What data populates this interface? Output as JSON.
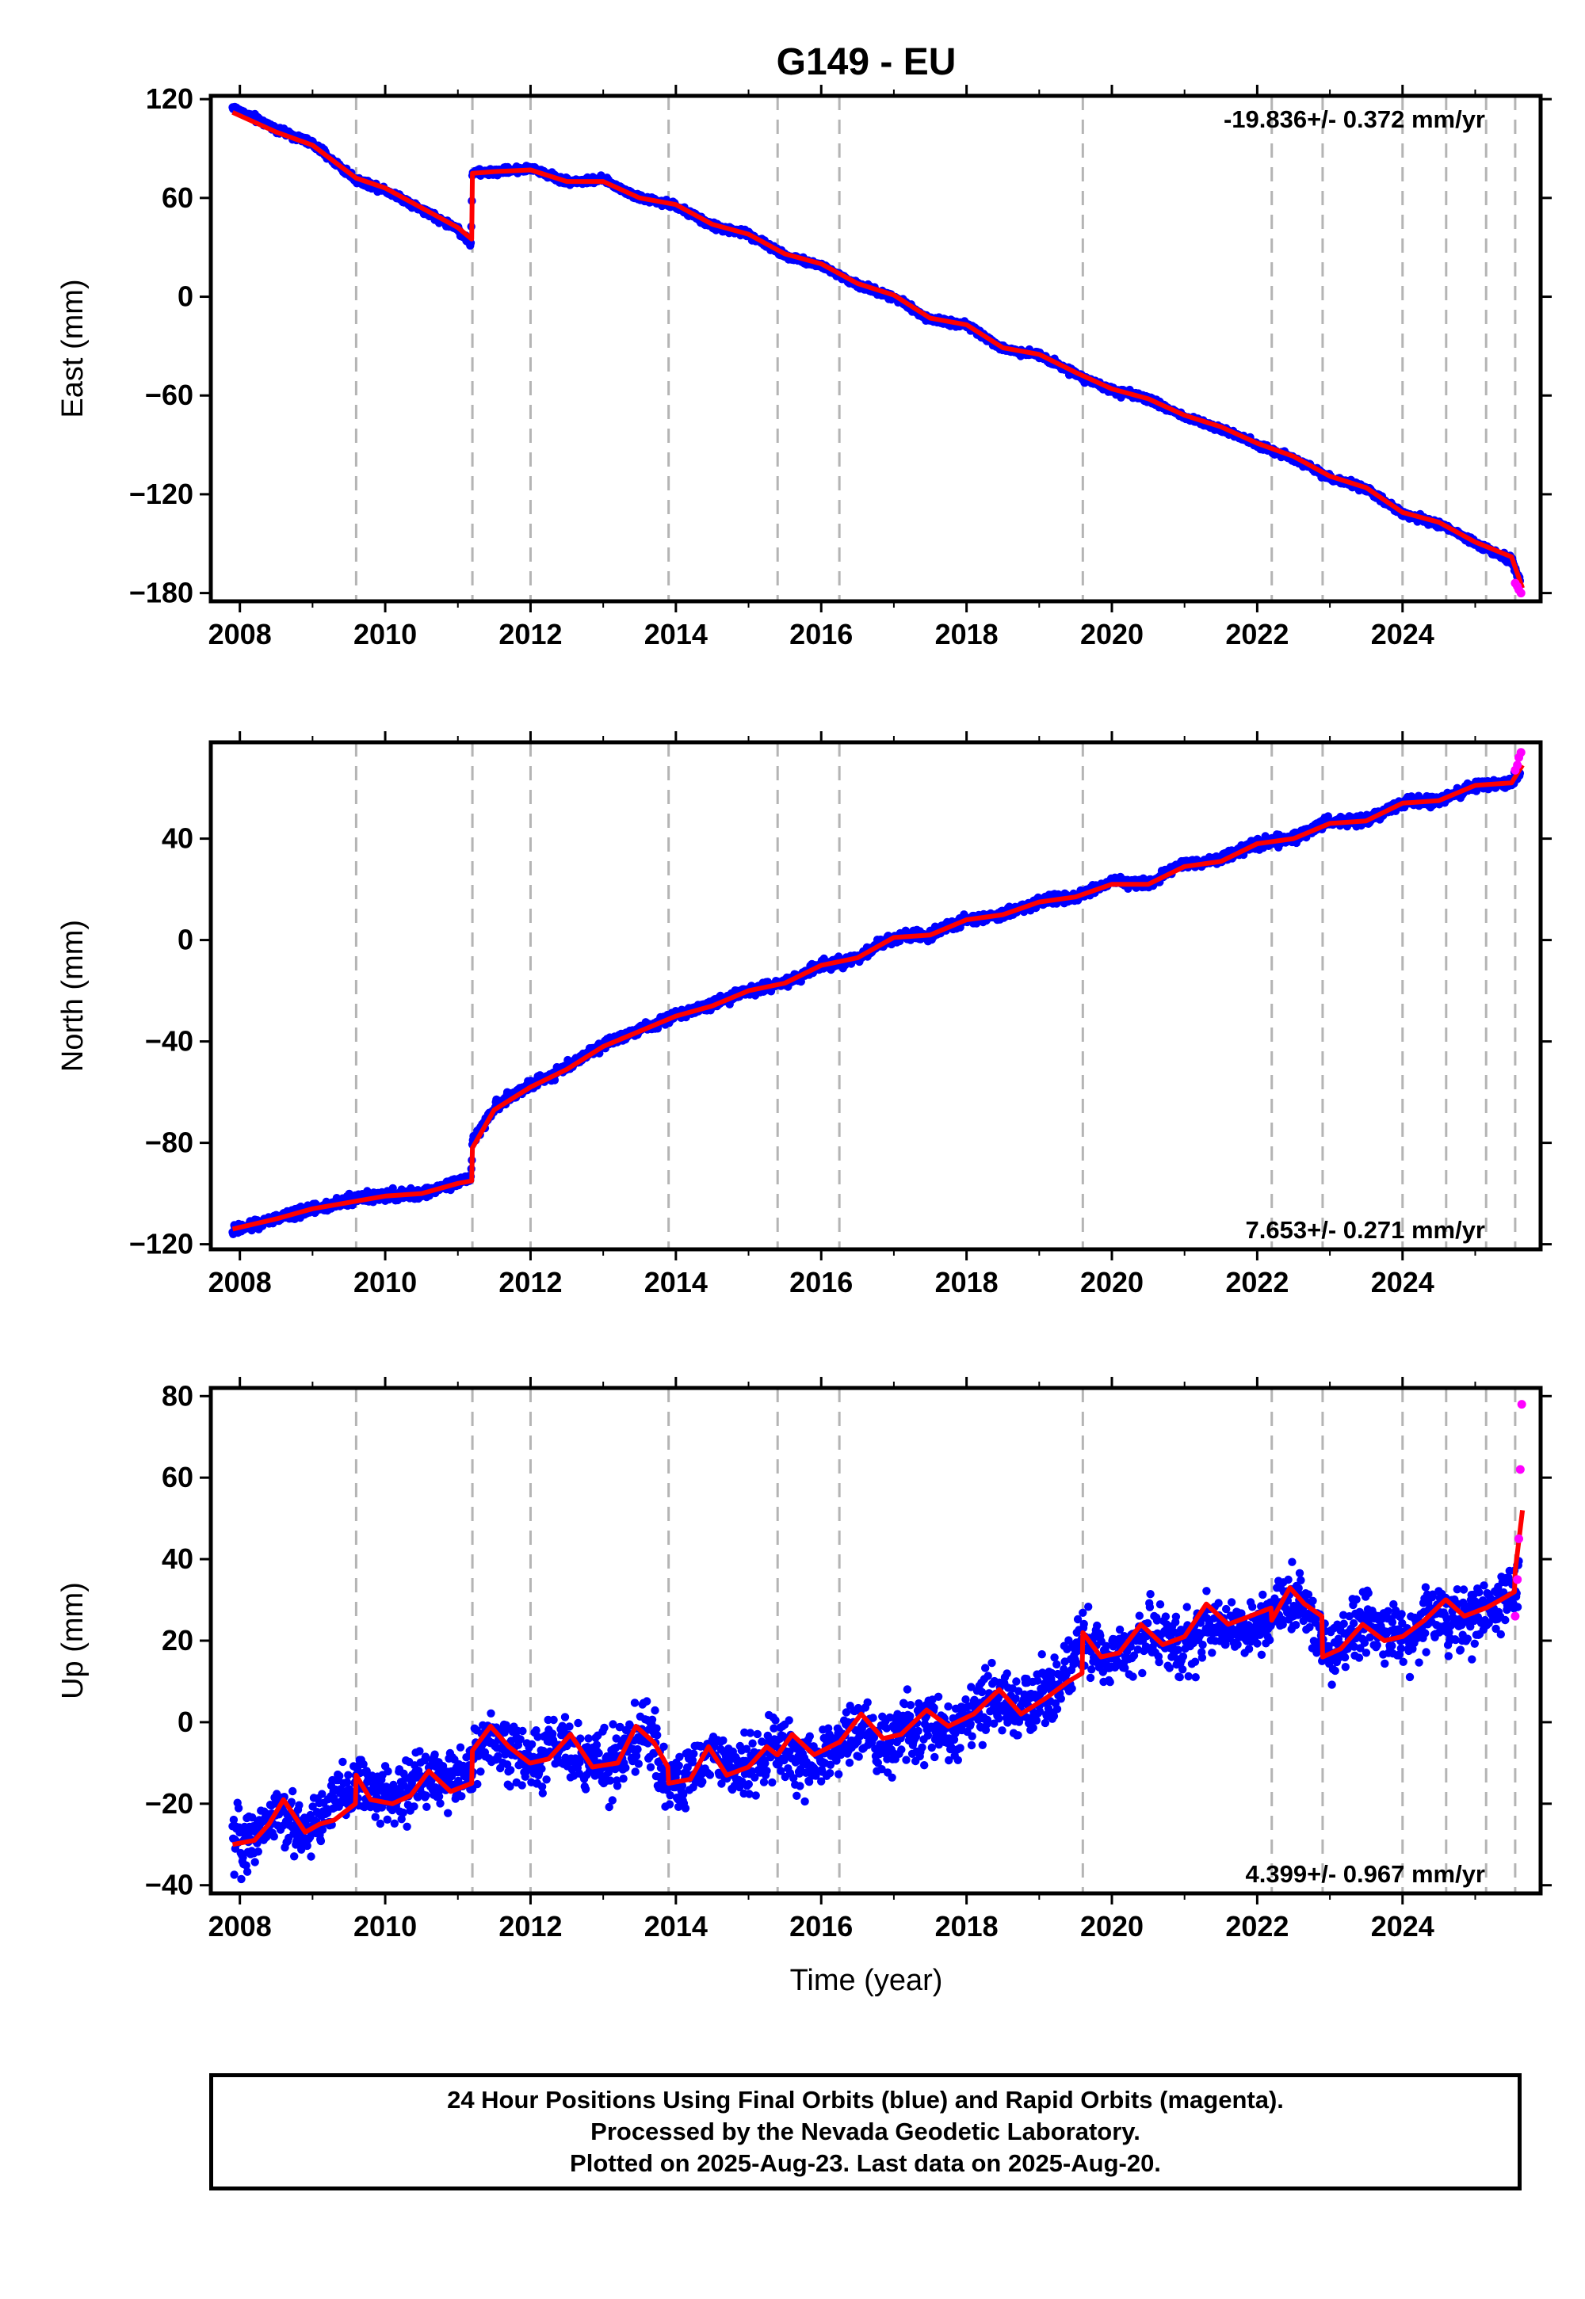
{
  "title": "G149 - EU",
  "colors": {
    "final_orbits": "#0000ff",
    "rapid_orbits": "#ff00ff",
    "model": "#ff0000",
    "event_lines": "#b4b4b4"
  },
  "xlabel": "Time (year)",
  "chart_data": [
    {
      "type": "scatter",
      "component": "East",
      "ylabel": "East (mm)",
      "xlim": [
        2007.6,
        2025.9
      ],
      "ylim": [
        -185,
        122
      ],
      "x_ticks": [
        2008,
        2010,
        2012,
        2014,
        2016,
        2018,
        2020,
        2022,
        2024
      ],
      "y_ticks": [
        120,
        60,
        0,
        -60,
        -120,
        -180
      ],
      "y_tick_labels": [
        "120",
        "60",
        "0",
        "−60",
        "−120",
        "−180"
      ],
      "velocity_label": "-19.836+/- 0.372 mm/yr",
      "velocity_position": "top-right",
      "event_lines": [
        2009.6,
        2011.2,
        2012.0,
        2013.9,
        2015.4,
        2016.25,
        2019.6,
        2022.2,
        2022.9,
        2024.0,
        2024.6,
        2025.15,
        2025.55
      ],
      "series": [
        {
          "name": "Final Orbits",
          "x": [
            2007.9,
            2008.5,
            2009.0,
            2009.6,
            2010.0,
            2010.5,
            2011.0,
            2011.18,
            2011.2,
            2011.5,
            2012.0,
            2012.5,
            2013.0,
            2013.5,
            2014.0,
            2014.5,
            2015.0,
            2015.5,
            2016.0,
            2016.5,
            2017.0,
            2017.5,
            2018.0,
            2018.5,
            2019.0,
            2019.5,
            2020.0,
            2020.5,
            2021.0,
            2021.5,
            2022.0,
            2022.5,
            2023.0,
            2023.5,
            2024.0,
            2024.5,
            2025.0,
            2025.5,
            2025.62
          ],
          "y": [
            115,
            102,
            93,
            71,
            65,
            53,
            41,
            32,
            75,
            76,
            78,
            70,
            71,
            60,
            55,
            43,
            38,
            25,
            19,
            7,
            0,
            -14,
            -17,
            -32,
            -35,
            -47,
            -57,
            -62,
            -73,
            -80,
            -90,
            -98,
            -110,
            -117,
            -132,
            -138,
            -150,
            -160,
            -173
          ]
        },
        {
          "name": "Rapid Orbits",
          "x": [
            2025.55,
            2025.58,
            2025.6,
            2025.63
          ],
          "y": [
            -174,
            -176,
            -178,
            -180
          ]
        }
      ],
      "model": {
        "x": [
          2007.9,
          2008.5,
          2009.0,
          2009.6,
          2010.0,
          2010.5,
          2011.0,
          2011.19,
          2011.2,
          2011.5,
          2012.0,
          2012.5,
          2013.0,
          2013.5,
          2014.0,
          2014.5,
          2015.0,
          2015.5,
          2016.0,
          2016.5,
          2017.0,
          2017.5,
          2018.0,
          2018.5,
          2019.0,
          2019.5,
          2020.0,
          2020.5,
          2021.0,
          2021.5,
          2022.0,
          2022.5,
          2023.0,
          2023.5,
          2024.0,
          2024.5,
          2025.0,
          2025.5,
          2025.65
        ],
        "y": [
          112,
          100,
          92,
          72,
          66,
          54,
          42,
          35,
          75,
          76,
          77,
          70,
          70,
          60,
          56,
          44,
          38,
          26,
          20,
          8,
          1,
          -13,
          -17,
          -31,
          -35,
          -46,
          -56,
          -62,
          -72,
          -79,
          -89,
          -97,
          -109,
          -116,
          -131,
          -137,
          -149,
          -158,
          -177
        ]
      }
    },
    {
      "type": "scatter",
      "component": "North",
      "ylabel": "North (mm)",
      "xlim": [
        2007.6,
        2025.9
      ],
      "ylim": [
        -122,
        78
      ],
      "x_ticks": [
        2008,
        2010,
        2012,
        2014,
        2016,
        2018,
        2020,
        2022,
        2024
      ],
      "y_ticks": [
        40,
        0,
        -40,
        -80,
        -120
      ],
      "y_tick_labels": [
        "40",
        "0",
        "−40",
        "−80",
        "−120"
      ],
      "velocity_label": "7.653+/- 0.271 mm/yr",
      "velocity_position": "bottom-right",
      "event_lines": [
        2009.6,
        2011.2,
        2012.0,
        2013.9,
        2015.4,
        2016.25,
        2019.6,
        2022.2,
        2022.9,
        2024.0,
        2024.6,
        2025.15,
        2025.55
      ],
      "series": [
        {
          "name": "Final Orbits",
          "x": [
            2007.9,
            2008.5,
            2009.0,
            2009.6,
            2010.0,
            2010.5,
            2011.0,
            2011.18,
            2011.2,
            2011.5,
            2012.0,
            2012.5,
            2013.0,
            2013.5,
            2014.0,
            2014.5,
            2015.0,
            2015.5,
            2016.0,
            2016.5,
            2017.0,
            2017.5,
            2018.0,
            2018.5,
            2019.0,
            2019.5,
            2020.0,
            2020.5,
            2021.0,
            2021.5,
            2022.0,
            2022.5,
            2023.0,
            2023.5,
            2024.0,
            2024.5,
            2025.0,
            2025.5,
            2025.62
          ],
          "y": [
            -115,
            -110,
            -106,
            -102,
            -101,
            -100,
            -95,
            -94,
            -80,
            -66,
            -57,
            -50,
            -41,
            -35,
            -30,
            -25,
            -20,
            -17,
            -10,
            -7,
            1,
            2,
            8,
            10,
            15,
            17,
            23,
            22,
            30,
            32,
            38,
            40,
            47,
            47,
            54,
            55,
            61,
            62,
            66
          ]
        },
        {
          "name": "Rapid Orbits",
          "x": [
            2025.55,
            2025.58,
            2025.6,
            2025.63
          ],
          "y": [
            67,
            69,
            72,
            74
          ]
        }
      ],
      "model": {
        "x": [
          2007.9,
          2008.5,
          2009.0,
          2009.6,
          2010.0,
          2010.5,
          2011.0,
          2011.19,
          2011.2,
          2011.5,
          2012.0,
          2012.5,
          2013.0,
          2013.5,
          2014.0,
          2014.5,
          2015.0,
          2015.5,
          2016.0,
          2016.5,
          2017.0,
          2017.5,
          2018.0,
          2018.5,
          2019.0,
          2019.5,
          2020.0,
          2020.5,
          2021.0,
          2021.5,
          2022.0,
          2022.5,
          2023.0,
          2023.5,
          2024.0,
          2024.5,
          2025.0,
          2025.5,
          2025.65
        ],
        "y": [
          -114,
          -110,
          -106,
          -103,
          -101,
          -100,
          -96,
          -95,
          -82,
          -67,
          -58,
          -51,
          -42,
          -36,
          -30,
          -26,
          -20,
          -17,
          -10,
          -7,
          1,
          2,
          8,
          10,
          15,
          17,
          22,
          22,
          29,
          31,
          38,
          40,
          46,
          47,
          54,
          55,
          61,
          62,
          69
        ]
      }
    },
    {
      "type": "scatter",
      "component": "Up",
      "ylabel": "Up (mm)",
      "xlim": [
        2007.6,
        2025.9
      ],
      "ylim": [
        -42,
        82
      ],
      "x_ticks": [
        2008,
        2010,
        2012,
        2014,
        2016,
        2018,
        2020,
        2022,
        2024
      ],
      "y_ticks": [
        80,
        60,
        40,
        20,
        0,
        -20,
        -40
      ],
      "y_tick_labels": [
        "80",
        "60",
        "40",
        "20",
        "0",
        "−20",
        "−40"
      ],
      "velocity_label": "4.399+/- 0.967 mm/yr",
      "velocity_position": "bottom-right",
      "event_lines": [
        2009.6,
        2011.2,
        2012.0,
        2013.9,
        2015.4,
        2016.25,
        2019.6,
        2022.2,
        2022.9,
        2024.0,
        2024.6,
        2025.15,
        2025.55
      ],
      "series": [
        {
          "name": "Final Orbits",
          "x": [
            2007.9,
            2008.2,
            2008.5,
            2008.8,
            2009.1,
            2009.4,
            2009.7,
            2010.0,
            2010.3,
            2010.6,
            2010.9,
            2011.2,
            2011.5,
            2011.8,
            2012.1,
            2012.4,
            2012.7,
            2013.0,
            2013.3,
            2013.6,
            2013.9,
            2014.2,
            2014.5,
            2014.8,
            2015.1,
            2015.4,
            2015.7,
            2016.0,
            2016.3,
            2016.6,
            2016.9,
            2017.2,
            2017.5,
            2017.8,
            2018.1,
            2018.4,
            2018.7,
            2019.0,
            2019.3,
            2019.6,
            2019.9,
            2020.2,
            2020.5,
            2020.8,
            2021.1,
            2021.4,
            2021.7,
            2022.0,
            2022.3,
            2022.6,
            2022.9,
            2023.2,
            2023.5,
            2023.8,
            2024.1,
            2024.4,
            2024.7,
            2025.0,
            2025.3,
            2025.6
          ],
          "y": [
            -30,
            -28,
            -22,
            -27,
            -24,
            -18,
            -15,
            -19,
            -17,
            -12,
            -15,
            -10,
            -3,
            -8,
            -10,
            -5,
            -10,
            -10,
            -7,
            -2,
            -15,
            -13,
            -7,
            -12,
            -10,
            -5,
            -10,
            -8,
            -4,
            -2,
            -6,
            -2,
            1,
            -3,
            2,
            5,
            2,
            6,
            8,
            20,
            15,
            17,
            22,
            19,
            20,
            25,
            22,
            23,
            28,
            30,
            18,
            19,
            25,
            20,
            21,
            27,
            25,
            26,
            30,
            35
          ]
        },
        {
          "name": "Rapid Orbits",
          "x": [
            2025.55,
            2025.58,
            2025.6,
            2025.62,
            2025.64
          ],
          "y": [
            26,
            35,
            45,
            62,
            78
          ]
        }
      ],
      "model": {
        "x": [
          2007.9,
          2008.2,
          2008.4,
          2008.6,
          2008.9,
          2009.1,
          2009.3,
          2009.59,
          2009.6,
          2009.8,
          2010.1,
          2010.35,
          2010.6,
          2010.9,
          2011.19,
          2011.2,
          2011.45,
          2011.7,
          2011.99,
          2012.0,
          2012.25,
          2012.55,
          2012.85,
          2013.2,
          2013.45,
          2013.7,
          2013.89,
          2013.9,
          2014.2,
          2014.45,
          2014.7,
          2015.0,
          2015.25,
          2015.39,
          2015.4,
          2015.6,
          2015.9,
          2016.24,
          2016.25,
          2016.55,
          2016.85,
          2017.1,
          2017.45,
          2017.75,
          2018.1,
          2018.45,
          2018.75,
          2019.1,
          2019.4,
          2019.59,
          2019.6,
          2019.85,
          2020.1,
          2020.4,
          2020.7,
          2021.0,
          2021.3,
          2021.6,
          2021.9,
          2022.19,
          2022.2,
          2022.45,
          2022.65,
          2022.89,
          2022.9,
          2023.15,
          2023.45,
          2023.75,
          2023.99,
          2024.0,
          2024.3,
          2024.59,
          2024.6,
          2024.85,
          2025.14,
          2025.15,
          2025.35,
          2025.54,
          2025.55,
          2025.65
        ],
        "y": [
          -30,
          -29,
          -25,
          -19,
          -27,
          -25,
          -24,
          -20,
          -13,
          -19,
          -20,
          -18,
          -12,
          -17,
          -15,
          -7,
          -1,
          -6,
          -10,
          -10,
          -9,
          -3,
          -11,
          -10,
          -1,
          -5,
          -11,
          -15,
          -14,
          -6,
          -13,
          -11,
          -6,
          -8,
          -8,
          -3,
          -8,
          -5,
          -5,
          2,
          -4,
          -3,
          3,
          -1,
          2,
          8,
          2,
          6,
          10,
          12,
          22,
          16,
          17,
          24,
          19,
          21,
          29,
          24,
          26,
          28,
          25,
          33,
          29,
          26,
          16,
          18,
          24,
          20,
          21,
          21,
          25,
          30,
          30,
          26,
          28,
          28,
          30,
          32,
          37,
          52
        ]
      }
    }
  ],
  "footer": {
    "line1": "24 Hour Positions Using Final Orbits (blue) and Rapid Orbits (magenta).",
    "line2": "Processed by the Nevada Geodetic Laboratory.",
    "line3": "Plotted on 2025-Aug-23. Last data on 2025-Aug-20."
  }
}
